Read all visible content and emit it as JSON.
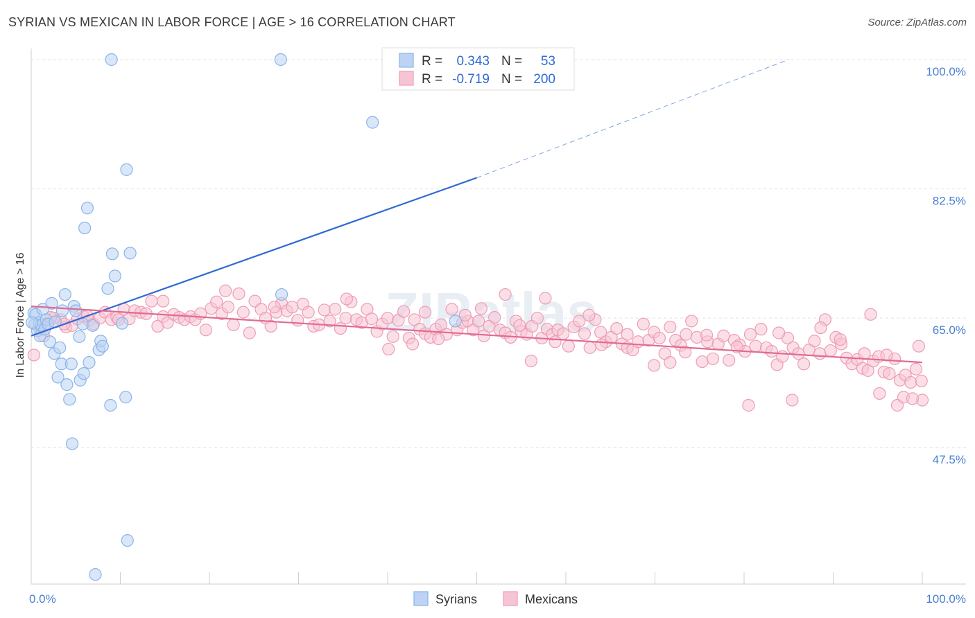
{
  "header": {
    "title": "SYRIAN VS MEXICAN IN LABOR FORCE | AGE > 16 CORRELATION CHART",
    "source": "Source: ZipAtlas.com"
  },
  "chart_data": {
    "type": "scatter",
    "xlabel": "",
    "ylabel": "In Labor Force | Age > 16",
    "x_tick_labels": [
      "0.0%",
      "100.0%"
    ],
    "y_tick_labels": [
      "100.0%",
      "82.5%",
      "65.0%",
      "47.5%"
    ],
    "y_ticks": [
      100.0,
      82.5,
      65.0,
      47.5
    ],
    "xlim": [
      0,
      100
    ],
    "ylim": [
      29,
      101.5
    ],
    "grid": true,
    "legend_position": "top-center",
    "watermark": "ZIPatlas",
    "series": [
      {
        "name": "Syrians",
        "color": "#8ab4ea",
        "fill": "#bcd3f3",
        "stats": {
          "r_label": "R =",
          "r": "0.343",
          "n_label": "N =",
          "n": "53"
        },
        "trend": {
          "x0": 0,
          "y0": 62.6,
          "x1": 50,
          "y1": 84.0,
          "dash_to_x": 85,
          "dash_to_y": 100
        },
        "points": [
          [
            0.3,
            65.7
          ],
          [
            0.4,
            64.2
          ],
          [
            0.5,
            65.5
          ],
          [
            0.7,
            63.3
          ],
          [
            0.9,
            64.4
          ],
          [
            1.0,
            62.6
          ],
          [
            1.1,
            64.0
          ],
          [
            1.3,
            66.2
          ],
          [
            1.5,
            63.5
          ],
          [
            1.7,
            64.8
          ],
          [
            1.9,
            64.2
          ],
          [
            2.1,
            61.8
          ],
          [
            2.3,
            67.0
          ],
          [
            2.6,
            60.2
          ],
          [
            2.7,
            64.5
          ],
          [
            3.0,
            57.0
          ],
          [
            3.2,
            61.0
          ],
          [
            3.4,
            58.8
          ],
          [
            3.5,
            66.0
          ],
          [
            3.8,
            68.2
          ],
          [
            4.0,
            56.0
          ],
          [
            4.3,
            54.0
          ],
          [
            4.5,
            58.8
          ],
          [
            4.6,
            48.0
          ],
          [
            4.8,
            66.6
          ],
          [
            5.0,
            66.0
          ],
          [
            5.4,
            62.5
          ],
          [
            5.5,
            56.6
          ],
          [
            5.8,
            64.2
          ],
          [
            5.9,
            57.5
          ],
          [
            6.0,
            77.2
          ],
          [
            6.3,
            79.9
          ],
          [
            6.5,
            59.0
          ],
          [
            6.9,
            64.0
          ],
          [
            7.2,
            30.3
          ],
          [
            7.6,
            60.7
          ],
          [
            7.8,
            61.9
          ],
          [
            8.0,
            61.2
          ],
          [
            8.6,
            69.0
          ],
          [
            8.9,
            53.2
          ],
          [
            9.0,
            100.0
          ],
          [
            9.1,
            73.7
          ],
          [
            9.4,
            70.7
          ],
          [
            10.2,
            64.3
          ],
          [
            10.6,
            54.3
          ],
          [
            10.7,
            85.1
          ],
          [
            10.8,
            34.9
          ],
          [
            11.1,
            73.8
          ],
          [
            28.0,
            100.0
          ],
          [
            28.1,
            68.2
          ],
          [
            38.3,
            91.5
          ],
          [
            47.6,
            64.6
          ],
          [
            0.1,
            64.4
          ]
        ]
      },
      {
        "name": "Mexicans",
        "color": "#ee9cb6",
        "fill": "#f7c4d3",
        "stats": {
          "r_label": "R =",
          "r": "-0.719",
          "n_label": "N =",
          "n": "200"
        },
        "trend": {
          "x0": 0,
          "y0": 66.6,
          "x1": 100,
          "y1": 59.0
        },
        "points": [
          [
            0.3,
            60.0
          ],
          [
            1.0,
            63.5
          ],
          [
            1.8,
            64.2
          ],
          [
            2.5,
            65.0
          ],
          [
            3.3,
            64.8
          ],
          [
            3.9,
            63.8
          ],
          [
            4.6,
            64.0
          ],
          [
            5.2,
            64.9
          ],
          [
            5.9,
            65.2
          ],
          [
            6.5,
            64.7
          ],
          [
            7.0,
            64.2
          ],
          [
            7.7,
            65.0
          ],
          [
            8.3,
            65.8
          ],
          [
            9.0,
            64.8
          ],
          [
            9.6,
            65.1
          ],
          [
            10.4,
            66.2
          ],
          [
            11.0,
            64.9
          ],
          [
            11.6,
            66.0
          ],
          [
            12.3,
            65.8
          ],
          [
            12.9,
            65.6
          ],
          [
            13.5,
            67.3
          ],
          [
            14.2,
            63.9
          ],
          [
            14.8,
            65.2
          ],
          [
            15.3,
            64.4
          ],
          [
            16.0,
            65.5
          ],
          [
            16.6,
            65.1
          ],
          [
            17.2,
            64.8
          ],
          [
            17.9,
            65.2
          ],
          [
            18.4,
            64.8
          ],
          [
            19.0,
            65.6
          ],
          [
            19.6,
            63.4
          ],
          [
            20.2,
            66.3
          ],
          [
            20.8,
            67.2
          ],
          [
            21.4,
            65.6
          ],
          [
            22.1,
            66.5
          ],
          [
            22.7,
            64.1
          ],
          [
            23.3,
            68.3
          ],
          [
            23.8,
            65.8
          ],
          [
            24.5,
            63.0
          ],
          [
            25.1,
            67.3
          ],
          [
            25.8,
            66.2
          ],
          [
            26.3,
            65.0
          ],
          [
            26.9,
            63.9
          ],
          [
            27.5,
            65.8
          ],
          [
            28.1,
            67.0
          ],
          [
            28.7,
            66.0
          ],
          [
            29.3,
            66.5
          ],
          [
            29.9,
            64.7
          ],
          [
            30.5,
            66.9
          ],
          [
            31.1,
            65.8
          ],
          [
            31.7,
            63.9
          ],
          [
            32.3,
            64.1
          ],
          [
            32.9,
            66.1
          ],
          [
            33.5,
            64.6
          ],
          [
            34.1,
            66.2
          ],
          [
            34.7,
            63.6
          ],
          [
            35.3,
            65.0
          ],
          [
            35.9,
            67.2
          ],
          [
            36.5,
            64.8
          ],
          [
            37.1,
            64.4
          ],
          [
            37.7,
            66.2
          ],
          [
            38.2,
            64.9
          ],
          [
            38.8,
            63.2
          ],
          [
            39.4,
            64.2
          ],
          [
            40.0,
            65.0
          ],
          [
            40.6,
            62.5
          ],
          [
            41.2,
            64.7
          ],
          [
            41.8,
            65.9
          ],
          [
            42.4,
            62.3
          ],
          [
            43.0,
            64.8
          ],
          [
            43.6,
            63.5
          ],
          [
            44.2,
            62.9
          ],
          [
            44.8,
            62.4
          ],
          [
            45.4,
            63.5
          ],
          [
            46.0,
            64.1
          ],
          [
            46.6,
            62.8
          ],
          [
            47.2,
            66.2
          ],
          [
            47.8,
            63.4
          ],
          [
            48.4,
            64.4
          ],
          [
            49.0,
            64.6
          ],
          [
            49.6,
            63.4
          ],
          [
            50.2,
            64.6
          ],
          [
            50.8,
            62.6
          ],
          [
            51.4,
            63.9
          ],
          [
            52.0,
            65.1
          ],
          [
            52.6,
            63.4
          ],
          [
            53.2,
            63.0
          ],
          [
            53.8,
            62.4
          ],
          [
            54.4,
            64.6
          ],
          [
            55.0,
            63.2
          ],
          [
            55.6,
            62.8
          ],
          [
            56.2,
            63.9
          ],
          [
            56.8,
            65.0
          ],
          [
            57.3,
            62.3
          ],
          [
            57.9,
            63.5
          ],
          [
            58.5,
            62.8
          ],
          [
            59.1,
            63.4
          ],
          [
            59.7,
            62.9
          ],
          [
            60.3,
            61.2
          ],
          [
            60.9,
            63.8
          ],
          [
            61.5,
            64.6
          ],
          [
            62.1,
            62.9
          ],
          [
            62.7,
            61.0
          ],
          [
            63.3,
            64.8
          ],
          [
            63.9,
            63.1
          ],
          [
            64.5,
            61.8
          ],
          [
            65.1,
            62.4
          ],
          [
            65.7,
            63.6
          ],
          [
            66.3,
            61.5
          ],
          [
            66.9,
            61.0
          ],
          [
            67.5,
            60.7
          ],
          [
            68.1,
            61.8
          ],
          [
            68.7,
            64.2
          ],
          [
            69.3,
            62.0
          ],
          [
            69.9,
            63.1
          ],
          [
            70.5,
            62.3
          ],
          [
            71.1,
            60.2
          ],
          [
            71.7,
            63.8
          ],
          [
            72.3,
            62.0
          ],
          [
            72.9,
            61.3
          ],
          [
            73.5,
            62.8
          ],
          [
            74.1,
            64.6
          ],
          [
            74.7,
            62.4
          ],
          [
            75.3,
            59.1
          ],
          [
            75.9,
            61.8
          ],
          [
            76.5,
            59.5
          ],
          [
            77.1,
            61.5
          ],
          [
            77.7,
            62.6
          ],
          [
            78.3,
            59.3
          ],
          [
            78.9,
            62.0
          ],
          [
            79.5,
            61.4
          ],
          [
            80.1,
            60.5
          ],
          [
            80.7,
            62.8
          ],
          [
            81.3,
            61.2
          ],
          [
            81.9,
            63.5
          ],
          [
            82.5,
            61.0
          ],
          [
            83.1,
            60.5
          ],
          [
            83.7,
            58.7
          ],
          [
            84.3,
            59.8
          ],
          [
            84.9,
            62.3
          ],
          [
            85.5,
            61.0
          ],
          [
            86.1,
            60.2
          ],
          [
            86.7,
            58.8
          ],
          [
            87.3,
            60.7
          ],
          [
            87.9,
            61.9
          ],
          [
            88.5,
            60.2
          ],
          [
            89.1,
            64.8
          ],
          [
            89.7,
            60.6
          ],
          [
            90.3,
            62.4
          ],
          [
            90.9,
            61.5
          ],
          [
            91.5,
            59.6
          ],
          [
            92.1,
            58.8
          ],
          [
            92.7,
            59.4
          ],
          [
            93.3,
            58.2
          ],
          [
            93.9,
            57.9
          ],
          [
            94.5,
            59.2
          ],
          [
            95.1,
            59.8
          ],
          [
            95.7,
            57.7
          ],
          [
            96.3,
            57.5
          ],
          [
            96.9,
            59.5
          ],
          [
            97.5,
            56.6
          ],
          [
            98.1,
            57.3
          ],
          [
            98.7,
            56.3
          ],
          [
            99.3,
            58.1
          ],
          [
            99.9,
            56.5
          ],
          [
            100.0,
            53.9
          ],
          [
            99.6,
            61.2
          ],
          [
            97.2,
            53.2
          ],
          [
            97.9,
            54.3
          ],
          [
            95.2,
            54.8
          ],
          [
            94.2,
            65.5
          ],
          [
            90.8,
            62.1
          ],
          [
            85.4,
            53.9
          ],
          [
            80.5,
            53.2
          ],
          [
            71.7,
            59.0
          ],
          [
            62.6,
            65.4
          ],
          [
            57.7,
            67.7
          ],
          [
            56.1,
            59.2
          ],
          [
            53.2,
            68.2
          ],
          [
            48.7,
            65.4
          ],
          [
            44.2,
            65.8
          ],
          [
            35.4,
            67.6
          ],
          [
            27.3,
            66.5
          ],
          [
            21.8,
            68.7
          ],
          [
            14.8,
            67.3
          ],
          [
            9.8,
            64.8
          ],
          [
            6.3,
            65.3
          ],
          [
            3.7,
            64.2
          ],
          [
            2.2,
            65.1
          ],
          [
            1.4,
            62.6
          ],
          [
            40.1,
            60.8
          ],
          [
            42.8,
            61.5
          ],
          [
            45.7,
            62.2
          ],
          [
            50.5,
            66.3
          ],
          [
            54.8,
            64.0
          ],
          [
            58.8,
            61.8
          ],
          [
            66.9,
            62.8
          ],
          [
            75.8,
            62.7
          ],
          [
            88.6,
            63.7
          ],
          [
            93.5,
            60.2
          ],
          [
            96.0,
            60.0
          ],
          [
            98.9,
            54.1
          ],
          [
            83.9,
            63.0
          ],
          [
            79.2,
            61.1
          ],
          [
            73.4,
            60.4
          ],
          [
            69.9,
            58.6
          ],
          [
            64.0,
            61.4
          ]
        ]
      }
    ]
  }
}
